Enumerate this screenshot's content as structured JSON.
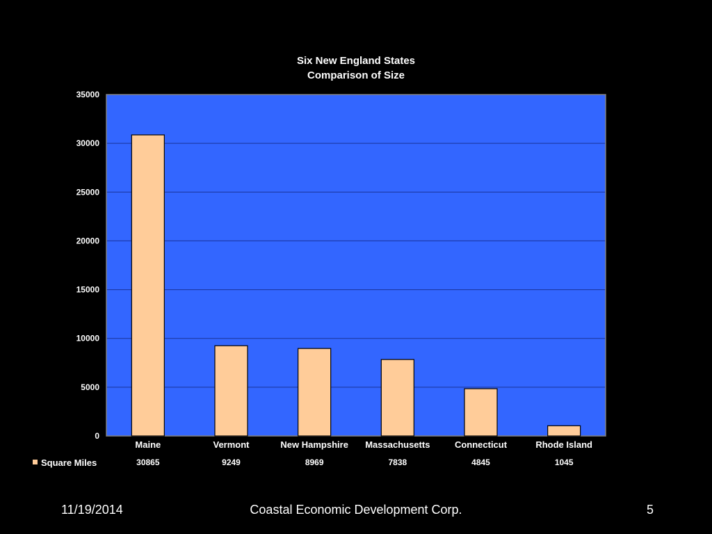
{
  "chart_data": {
    "type": "bar",
    "title": "Six New England States",
    "subtitle": "Comparison of Size",
    "categories": [
      "Maine",
      "Vermont",
      "New Hampshire",
      "Massachusetts",
      "Connecticut",
      "Rhode Island"
    ],
    "series": [
      {
        "name": "Square Miles",
        "values": [
          30865,
          9249,
          8969,
          7838,
          4845,
          1045
        ],
        "value_labels": [
          "30865",
          "9249",
          "8969",
          "7838",
          "4845",
          "1045"
        ]
      }
    ],
    "yticks": [
      "0",
      "5000",
      "10000",
      "15000",
      "20000",
      "25000",
      "30000",
      "35000"
    ],
    "ylim": [
      0,
      35000
    ],
    "xlabel": "",
    "ylabel": "",
    "grid": true,
    "legend": "data-table-left",
    "colors": {
      "plot_background": "#3366ff",
      "bar_fill": "#ffcc99",
      "bar_stroke": "#000000",
      "gridline": "#1a3399",
      "text": "#ffffff",
      "page_background": "#000000"
    }
  },
  "footer": {
    "date": "11/19/2014",
    "organization": "Coastal Economic Development Corp.",
    "page_number": "5"
  }
}
